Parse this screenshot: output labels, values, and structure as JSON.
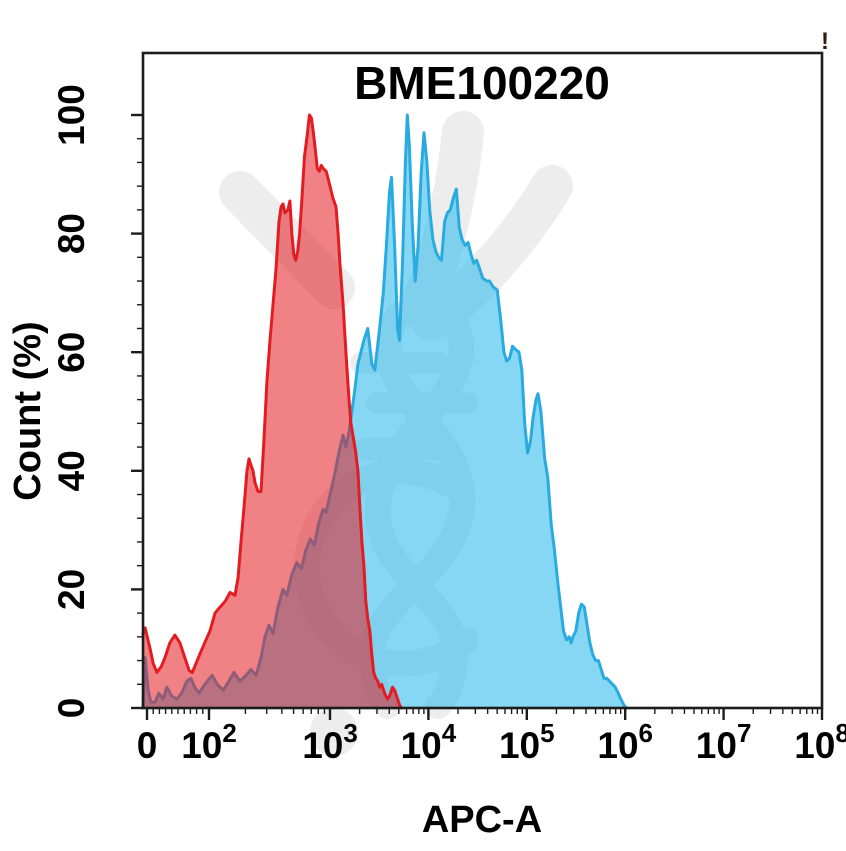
{
  "chart_data": {
    "type": "area",
    "subtype": "flow-cytometry-overlaid-histograms",
    "title": "BME100220",
    "xlabel": "APC-A",
    "ylabel": "Count (%)",
    "annotation": "!",
    "watermark_icon": "dna-helix-logo",
    "x_axis": {
      "scale": "logicle (linear 0-100, log above 100)",
      "range_label": "0 to 1e8",
      "ticks": [
        {
          "label": "0",
          "exp": "",
          "value": 0
        },
        {
          "label": "10",
          "exp": "2",
          "value": 100
        },
        {
          "label": "10",
          "exp": "3",
          "value": 1000
        },
        {
          "label": "10",
          "exp": "4",
          "value": 10000
        },
        {
          "label": "10",
          "exp": "5",
          "value": 100000
        },
        {
          "label": "10",
          "exp": "6",
          "value": 1000000
        },
        {
          "label": "10",
          "exp": "7",
          "value": 10000000
        },
        {
          "label": "10",
          "exp": "8",
          "value": 100000000
        }
      ]
    },
    "y_axis": {
      "min": 0,
      "max": 100,
      "ticks": [
        0,
        20,
        40,
        60,
        80,
        100
      ],
      "minor_step": 4
    },
    "colors": {
      "red_stroke": "#e31c22",
      "red_fill": "rgba(227,28,34,0.55)",
      "blue_stroke": "#29abe2",
      "blue_fill": "rgba(60,190,235,0.62)",
      "axis": "#1c1c1c",
      "watermark": "#ededed"
    },
    "series": [
      {
        "name": "blue-histogram",
        "stroke": "#29abe2",
        "fill": "rgba(60,190,235,0.62)",
        "points": [
          [
            -6.5,
            0
          ],
          [
            -3,
            8.5
          ],
          [
            2,
            3
          ],
          [
            6,
            1
          ],
          [
            13,
            1
          ],
          [
            19,
            2.5
          ],
          [
            26,
            1.5
          ],
          [
            32,
            3.5
          ],
          [
            40,
            2
          ],
          [
            48,
            1.5
          ],
          [
            56,
            2.5
          ],
          [
            64,
            4.5
          ],
          [
            71,
            5
          ],
          [
            77,
            3.5
          ],
          [
            84,
            2.5
          ],
          [
            90,
            3.5
          ],
          [
            97,
            4.5
          ],
          [
            106,
            5.5
          ],
          [
            117,
            4
          ],
          [
            131,
            3
          ],
          [
            146,
            4.5
          ],
          [
            161,
            6
          ],
          [
            180,
            4.5
          ],
          [
            202,
            5.5
          ],
          [
            222,
            6.5
          ],
          [
            245,
            5.5
          ],
          [
            269,
            8.5
          ],
          [
            290,
            12
          ],
          [
            313,
            14
          ],
          [
            338,
            12.5
          ],
          [
            371,
            17
          ],
          [
            409,
            20
          ],
          [
            440,
            19
          ],
          [
            483,
            22.5
          ],
          [
            531,
            24.5
          ],
          [
            583,
            23.5
          ],
          [
            628,
            26.5
          ],
          [
            688,
            28.5
          ],
          [
            743,
            27.5
          ],
          [
            803,
            31
          ],
          [
            875,
            33.5
          ],
          [
            930,
            33
          ],
          [
            1020,
            36.5
          ],
          [
            1120,
            39.5
          ],
          [
            1230,
            43
          ],
          [
            1360,
            46
          ],
          [
            1450,
            44
          ],
          [
            1560,
            46.5
          ],
          [
            1670,
            50
          ],
          [
            1800,
            54
          ],
          [
            1920,
            58
          ],
          [
            2060,
            60
          ],
          [
            2210,
            62
          ],
          [
            2420,
            64
          ],
          [
            2660,
            58
          ],
          [
            2850,
            57
          ],
          [
            3150,
            63
          ],
          [
            3480,
            70
          ],
          [
            3740,
            78
          ],
          [
            4020,
            87
          ],
          [
            4220,
            89.5
          ],
          [
            4530,
            78
          ],
          [
            4860,
            64
          ],
          [
            5090,
            62
          ],
          [
            5450,
            75
          ],
          [
            5840,
            92
          ],
          [
            6110,
            100
          ],
          [
            6400,
            95
          ],
          [
            6850,
            82
          ],
          [
            7340,
            72
          ],
          [
            7860,
            78
          ],
          [
            8420,
            90
          ],
          [
            9020,
            97
          ],
          [
            9660,
            92
          ],
          [
            10300,
            84
          ],
          [
            11100,
            79
          ],
          [
            11900,
            77
          ],
          [
            12700,
            76
          ],
          [
            13600,
            75.5
          ],
          [
            14600,
            82
          ],
          [
            15600,
            83.5
          ],
          [
            16700,
            84
          ],
          [
            17900,
            86
          ],
          [
            19200,
            87.5
          ],
          [
            20600,
            81
          ],
          [
            22000,
            79
          ],
          [
            23600,
            78
          ],
          [
            25300,
            78.5
          ],
          [
            27100,
            76.5
          ],
          [
            29000,
            75
          ],
          [
            31000,
            75.5
          ],
          [
            33300,
            74
          ],
          [
            35600,
            72.5
          ],
          [
            39000,
            72
          ],
          [
            41800,
            72
          ],
          [
            45700,
            71
          ],
          [
            50000,
            70.5
          ],
          [
            54700,
            65
          ],
          [
            58500,
            60
          ],
          [
            62500,
            58.5
          ],
          [
            66800,
            59
          ],
          [
            71500,
            61
          ],
          [
            76400,
            60.5
          ],
          [
            83300,
            60
          ],
          [
            89000,
            57
          ],
          [
            95200,
            48
          ],
          [
            102000,
            43
          ],
          [
            109000,
            45
          ],
          [
            116000,
            49
          ],
          [
            124000,
            52
          ],
          [
            130000,
            53
          ],
          [
            139000,
            50
          ],
          [
            152000,
            42
          ],
          [
            163000,
            39
          ],
          [
            177000,
            31
          ],
          [
            190000,
            27
          ],
          [
            207000,
            21
          ],
          [
            221000,
            17
          ],
          [
            236000,
            13
          ],
          [
            253000,
            11.5
          ],
          [
            270000,
            12
          ],
          [
            282000,
            11
          ],
          [
            295000,
            12
          ],
          [
            315000,
            13
          ],
          [
            337000,
            16
          ],
          [
            359000,
            17.5
          ],
          [
            384000,
            17
          ],
          [
            410000,
            14
          ],
          [
            438000,
            11
          ],
          [
            468000,
            9
          ],
          [
            500000,
            8
          ],
          [
            534000,
            8
          ],
          [
            570000,
            6.5
          ],
          [
            609000,
            5
          ],
          [
            651000,
            5
          ],
          [
            695000,
            4.5
          ],
          [
            743000,
            4
          ],
          [
            793000,
            3.5
          ],
          [
            848000,
            2.5
          ],
          [
            905000,
            1.5
          ],
          [
            967000,
            0.5
          ],
          [
            1030000,
            0
          ]
        ]
      },
      {
        "name": "red-histogram",
        "stroke": "#e31c22",
        "fill": "rgba(227,28,34,0.55)",
        "points": [
          [
            -6.5,
            12.5
          ],
          [
            -3,
            13.5
          ],
          [
            5,
            10
          ],
          [
            10,
            7.5
          ],
          [
            16,
            6
          ],
          [
            23,
            7
          ],
          [
            29,
            8.5
          ],
          [
            37,
            11
          ],
          [
            45,
            12.3
          ],
          [
            53,
            11
          ],
          [
            61,
            8.5
          ],
          [
            68,
            6.3
          ],
          [
            73,
            6
          ],
          [
            79,
            7.5
          ],
          [
            85,
            9
          ],
          [
            93,
            11
          ],
          [
            102,
            13
          ],
          [
            112,
            16
          ],
          [
            123,
            17
          ],
          [
            136,
            18
          ],
          [
            149,
            19.5
          ],
          [
            164,
            19
          ],
          [
            174,
            22
          ],
          [
            184,
            28
          ],
          [
            195,
            34
          ],
          [
            206,
            40
          ],
          [
            214,
            42
          ],
          [
            222,
            41
          ],
          [
            231,
            40
          ],
          [
            240,
            38
          ],
          [
            254,
            36.5
          ],
          [
            269,
            36.5
          ],
          [
            284,
            45
          ],
          [
            301,
            55
          ],
          [
            319,
            62
          ],
          [
            338,
            68
          ],
          [
            358,
            74
          ],
          [
            379,
            82
          ],
          [
            394,
            84.5
          ],
          [
            409,
            85
          ],
          [
            424,
            83.5
          ],
          [
            449,
            84
          ],
          [
            466,
            85.5
          ],
          [
            483,
            80
          ],
          [
            502,
            76.5
          ],
          [
            521,
            75.5
          ],
          [
            541,
            77
          ],
          [
            561,
            80
          ],
          [
            582,
            85
          ],
          [
            616,
            93
          ],
          [
            652,
            97
          ],
          [
            676,
            100
          ],
          [
            702,
            99.5
          ],
          [
            729,
            97
          ],
          [
            757,
            94
          ],
          [
            786,
            91
          ],
          [
            815,
            90.5
          ],
          [
            847,
            91.5
          ],
          [
            879,
            91
          ],
          [
            930,
            90.5
          ],
          [
            1000,
            88
          ],
          [
            1070,
            86
          ],
          [
            1150,
            84.5
          ],
          [
            1210,
            80
          ],
          [
            1260,
            75
          ],
          [
            1360,
            68
          ],
          [
            1450,
            60
          ],
          [
            1560,
            52
          ],
          [
            1630,
            48
          ],
          [
            1750,
            45
          ],
          [
            1830,
            43
          ],
          [
            1920,
            40
          ],
          [
            2010,
            34
          ],
          [
            2110,
            28
          ],
          [
            2210,
            24
          ],
          [
            2310,
            18
          ],
          [
            2420,
            15
          ],
          [
            2540,
            13
          ],
          [
            2660,
            9
          ],
          [
            2780,
            6
          ],
          [
            2920,
            5
          ],
          [
            3060,
            4.5
          ],
          [
            3200,
            3.5
          ],
          [
            3350,
            4
          ],
          [
            3590,
            2.5
          ],
          [
            3850,
            1.5
          ],
          [
            4030,
            2
          ],
          [
            4320,
            3.5
          ],
          [
            4530,
            3
          ],
          [
            4860,
            1.5
          ],
          [
            5090,
            0.5
          ],
          [
            5330,
            0
          ]
        ]
      }
    ]
  }
}
